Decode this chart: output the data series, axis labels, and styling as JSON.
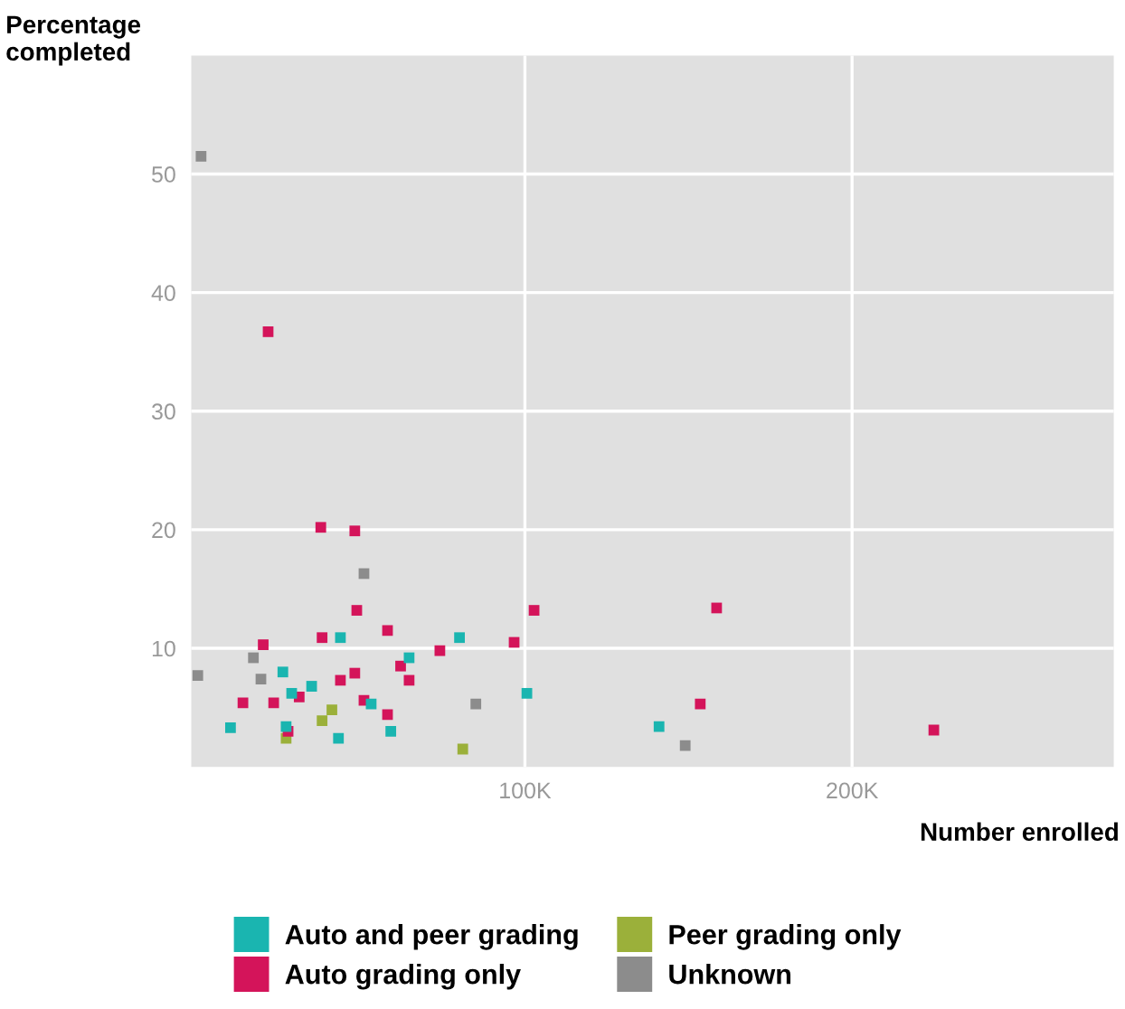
{
  "chart_data": {
    "type": "scatter",
    "xlabel": "Number enrolled",
    "ylabel": "Percentage\ncompleted",
    "xlim": [
      -2000,
      280000
    ],
    "ylim": [
      0,
      60
    ],
    "xticks": [
      {
        "value": 100000,
        "label": "100K"
      },
      {
        "value": 200000,
        "label": "200K"
      }
    ],
    "yticks": [
      10,
      20,
      30,
      40,
      50
    ],
    "grid": true,
    "legend": "bottom",
    "marker": "square",
    "series": [
      {
        "name": "Auto and peer grading",
        "color": "#1ab5b0",
        "x": [
          43600,
          80000,
          64600,
          26000,
          34800,
          28700,
          53000,
          100600,
          10000,
          59000,
          43000,
          27000,
          141000
        ],
        "values": [
          10.9,
          10.9,
          9.2,
          8.0,
          6.8,
          6.2,
          5.3,
          6.2,
          3.3,
          3.0,
          2.4,
          3.4,
          3.4
        ]
      },
      {
        "name": "Auto grading only",
        "color": "#d4145a",
        "x": [
          37600,
          48000,
          48600,
          38000,
          58000,
          20000,
          74000,
          96700,
          102800,
          62000,
          64600,
          43600,
          48000,
          13800,
          23200,
          31000,
          50800,
          58000,
          27600,
          21500,
          158600,
          153600,
          225000
        ],
        "values": [
          20.2,
          19.9,
          13.2,
          10.9,
          11.5,
          10.3,
          9.8,
          10.5,
          13.2,
          8.5,
          7.3,
          7.3,
          7.9,
          5.4,
          5.4,
          5.9,
          5.6,
          4.4,
          3.0,
          36.7,
          13.4,
          5.3,
          3.1
        ]
      },
      {
        "name": "Peer grading only",
        "color": "#9bb03a",
        "x": [
          41000,
          38000,
          27000,
          81000
        ],
        "values": [
          4.8,
          3.9,
          2.4,
          1.5
        ]
      },
      {
        "name": "Unknown",
        "color": "#8c8c8c",
        "x": [
          50800,
          17000,
          0,
          19300,
          85000,
          1000,
          149000
        ],
        "values": [
          16.3,
          9.2,
          7.7,
          7.4,
          5.3,
          51.5,
          1.8
        ]
      }
    ]
  }
}
